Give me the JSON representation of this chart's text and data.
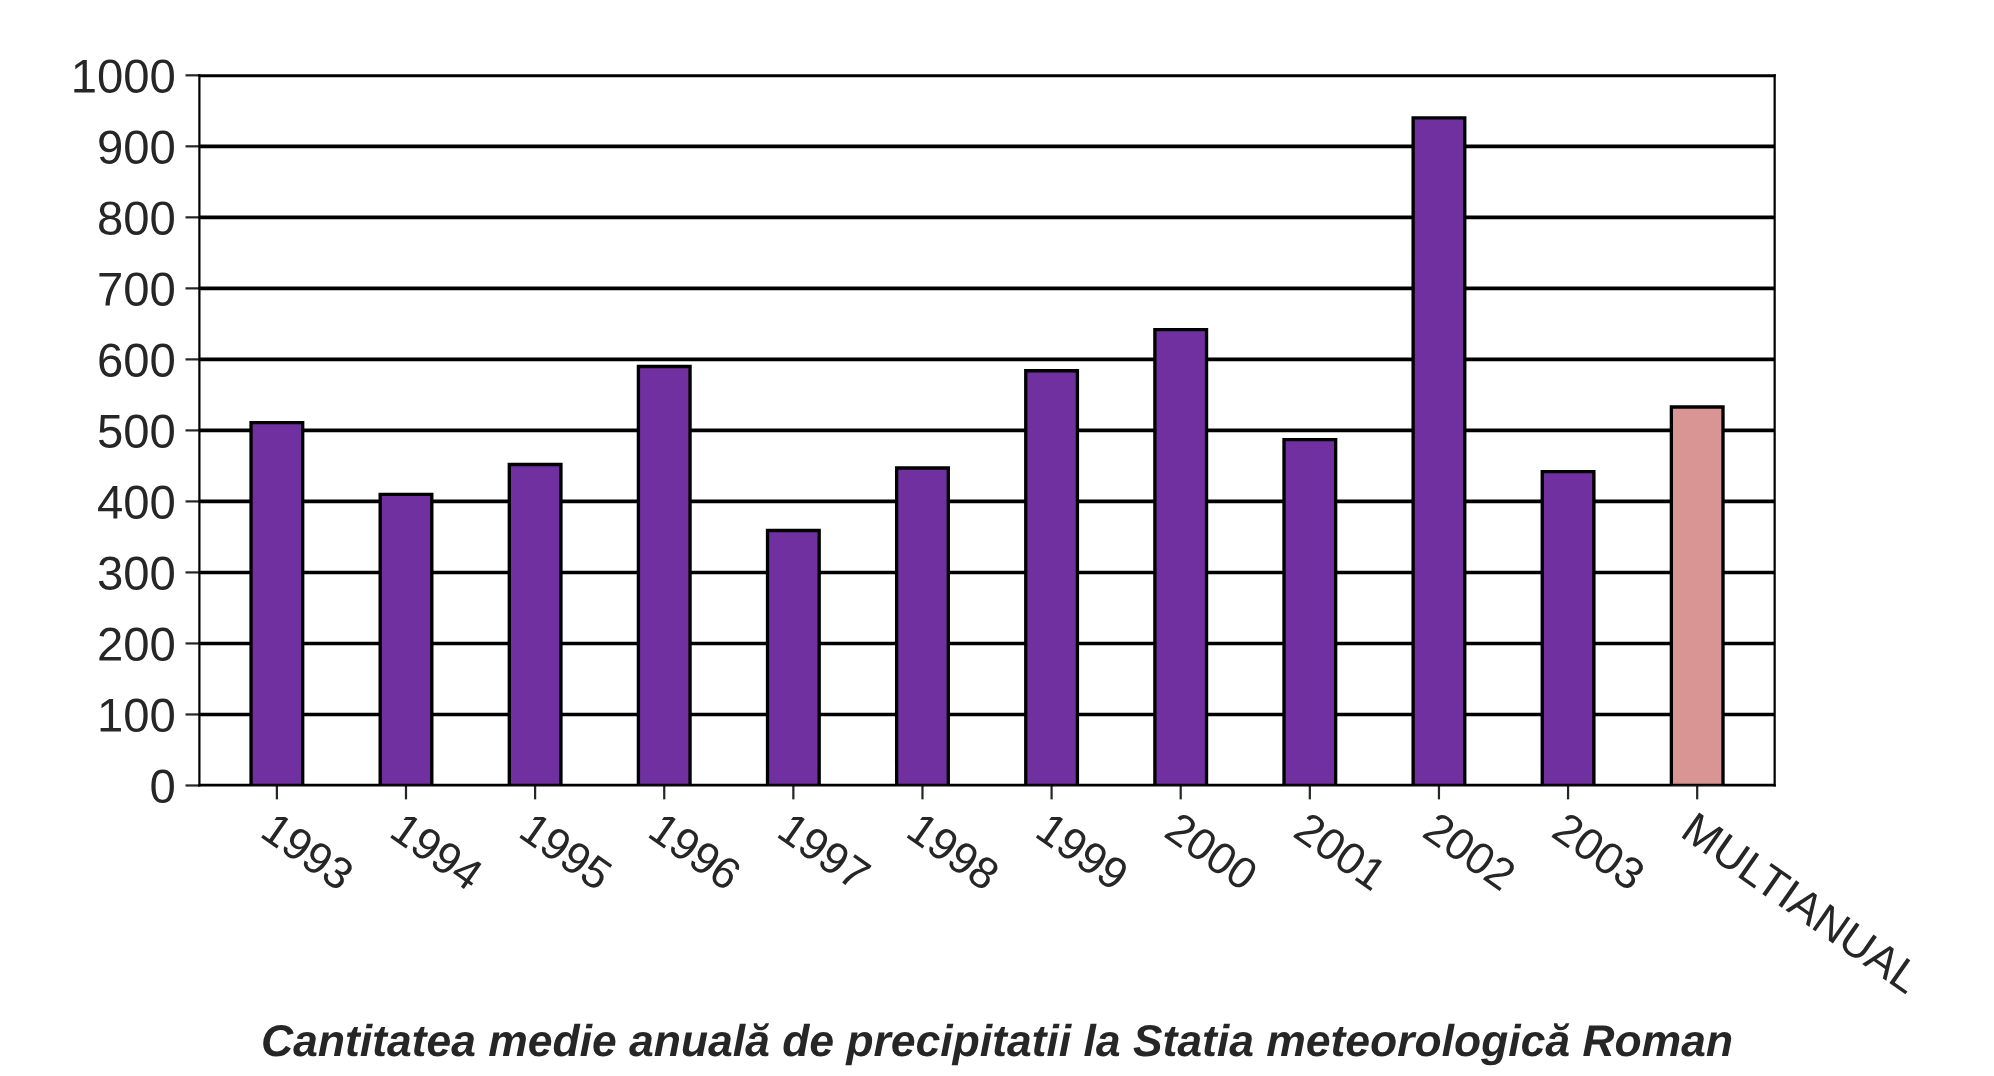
{
  "chart_data": {
    "type": "bar",
    "title": "Cantitatea medie anuală de precipitatii la Statia meteorologică Roman",
    "categories": [
      "1993",
      "1994",
      "1995",
      "1996",
      "1997",
      "1998",
      "1999",
      "2000",
      "2001",
      "2002",
      "2003",
      "MULTIANUAL"
    ],
    "values": [
      511,
      410,
      452,
      590,
      359,
      447,
      584,
      642,
      487,
      940,
      442,
      533
    ],
    "colors": [
      "#7030a0",
      "#7030a0",
      "#7030a0",
      "#7030a0",
      "#7030a0",
      "#7030a0",
      "#7030a0",
      "#7030a0",
      "#7030a0",
      "#7030a0",
      "#7030a0",
      "#d99594"
    ],
    "ylim": [
      0,
      1000
    ],
    "yticks": [
      0,
      100,
      200,
      300,
      400,
      500,
      600,
      700,
      800,
      900,
      1000
    ],
    "grid": "y"
  }
}
